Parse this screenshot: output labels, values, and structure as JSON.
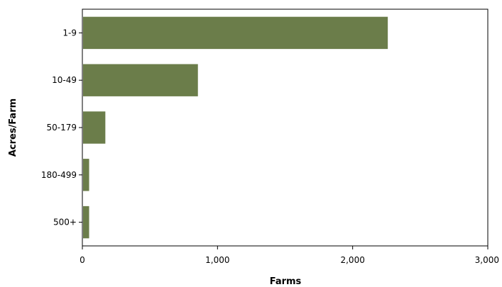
{
  "chart_data": {
    "type": "bar",
    "orientation": "horizontal",
    "categories": [
      "1-9",
      "10-49",
      "50-179",
      "180-499",
      "500+"
    ],
    "values": [
      2260,
      855,
      170,
      50,
      50
    ],
    "xlabel": "Farms",
    "ylabel": "Acres/Farm",
    "xlim": [
      0,
      3000
    ],
    "xticks": [
      0,
      1000,
      2000,
      3000
    ],
    "xtick_labels": [
      "0",
      "1,000",
      "2,000",
      "3,000"
    ],
    "bar_color": "#6b7d4a",
    "grid": false,
    "legend": "none"
  }
}
